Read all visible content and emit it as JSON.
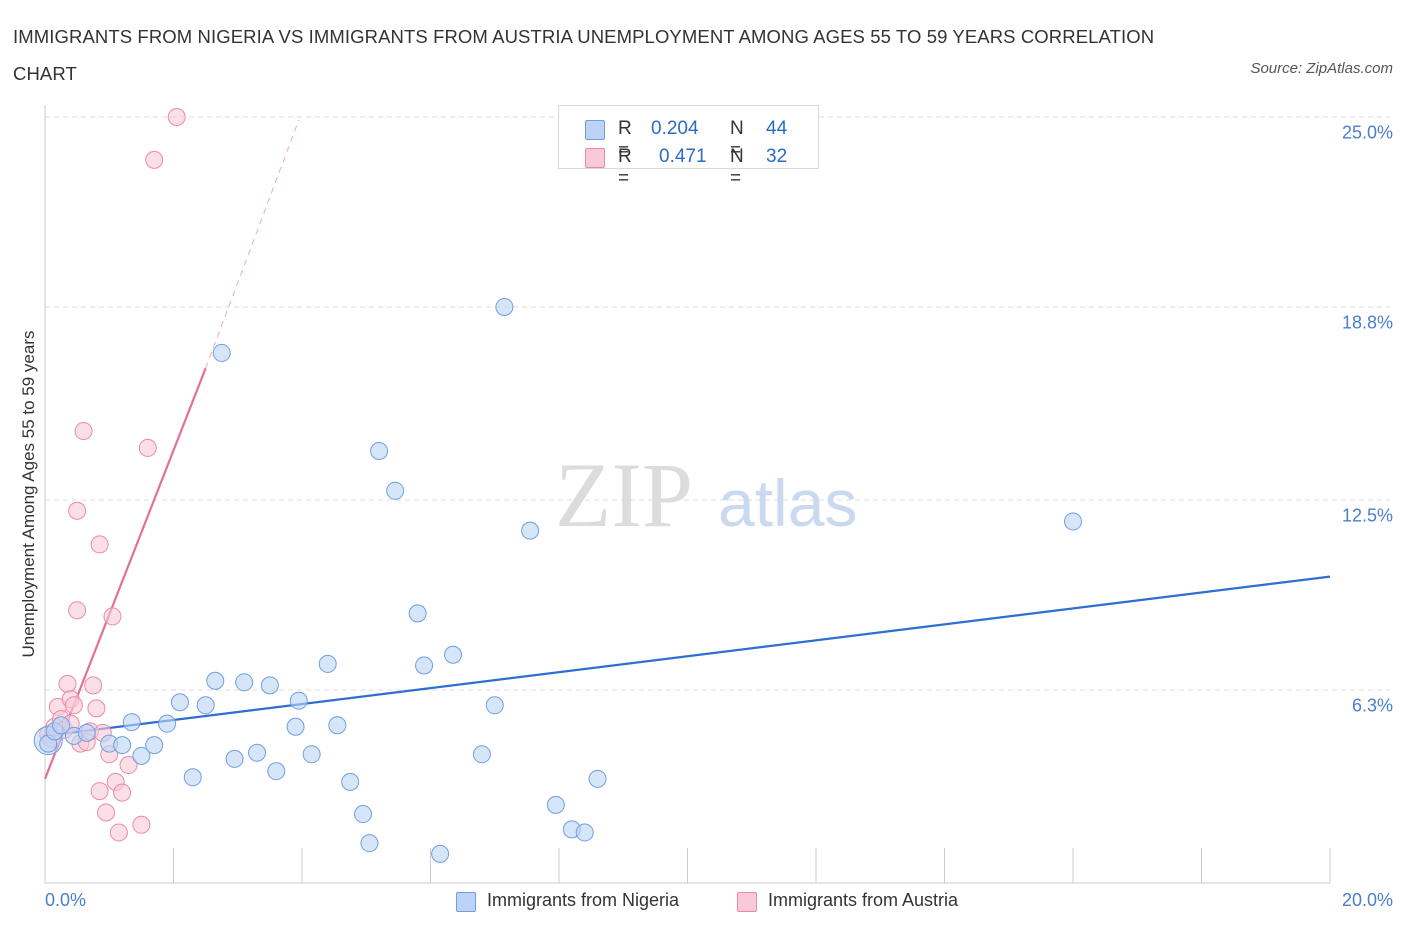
{
  "chart_data": {
    "type": "scatter",
    "title": "IMMIGRANTS FROM NIGERIA VS IMMIGRANTS FROM AUSTRIA UNEMPLOYMENT AMONG AGES 55 TO 59 YEARS CORRELATION CHART",
    "source": "Source: ZipAtlas.com",
    "xlabel": "",
    "ylabel": "Unemployment Among Ages 55 to 59 years",
    "xlim": [
      0,
      20
    ],
    "ylim": [
      0,
      25
    ],
    "x_tick_labels": [
      {
        "value": 0,
        "label": "0.0%"
      },
      {
        "value": 20,
        "label": "20.0%"
      }
    ],
    "y_tick_labels": [
      {
        "value": 6.3,
        "label": "6.3%"
      },
      {
        "value": 12.5,
        "label": "12.5%"
      },
      {
        "value": 18.8,
        "label": "18.8%"
      },
      {
        "value": 25.0,
        "label": "25.0%"
      }
    ],
    "stats": [
      {
        "r_label": "R =",
        "r_value": "0.204",
        "n_label": "N =",
        "n_value": "44"
      },
      {
        "r_label": "R =",
        "r_value": "0.471",
        "n_label": "N =",
        "n_value": "32"
      }
    ],
    "series": [
      {
        "name": "Immigrants from Nigeria",
        "color": "#6f9fe0",
        "fill": "#bcd3f5",
        "trend_color": "#2d6fd0",
        "trend": {
          "x0": 0,
          "y0": 4.8,
          "x1": 20,
          "y1": 10.0
        },
        "points": [
          [
            0.05,
            4.55
          ],
          [
            0.15,
            4.95
          ],
          [
            0.25,
            5.15
          ],
          [
            0.45,
            4.8
          ],
          [
            0.65,
            4.9
          ],
          [
            1.0,
            4.55
          ],
          [
            1.2,
            4.5
          ],
          [
            1.35,
            5.25
          ],
          [
            1.5,
            4.15
          ],
          [
            1.7,
            4.5
          ],
          [
            1.9,
            5.2
          ],
          [
            2.1,
            5.9
          ],
          [
            2.3,
            3.45
          ],
          [
            2.5,
            5.8
          ],
          [
            2.65,
            6.6
          ],
          [
            2.95,
            4.05
          ],
          [
            3.1,
            6.55
          ],
          [
            3.3,
            4.25
          ],
          [
            3.5,
            6.45
          ],
          [
            3.6,
            3.65
          ],
          [
            3.9,
            5.1
          ],
          [
            3.95,
            5.95
          ],
          [
            4.15,
            4.2
          ],
          [
            4.4,
            7.15
          ],
          [
            4.55,
            5.15
          ],
          [
            4.75,
            3.3
          ],
          [
            4.95,
            2.25
          ],
          [
            5.05,
            1.3
          ],
          [
            5.2,
            14.1
          ],
          [
            5.45,
            12.8
          ],
          [
            5.8,
            8.8
          ],
          [
            5.9,
            7.1
          ],
          [
            6.15,
            0.95
          ],
          [
            6.35,
            7.45
          ],
          [
            6.8,
            4.2
          ],
          [
            7.0,
            5.8
          ],
          [
            7.15,
            18.8
          ],
          [
            7.55,
            11.5
          ],
          [
            7.95,
            2.55
          ],
          [
            8.2,
            1.75
          ],
          [
            8.4,
            1.65
          ],
          [
            8.6,
            3.4
          ],
          [
            2.75,
            17.3
          ],
          [
            16.0,
            11.8
          ]
        ]
      },
      {
        "name": "Immigrants from Austria",
        "color": "#ec8aa8",
        "fill": "#f8c9d7",
        "trend_color": "#e0719a",
        "trend": {
          "x0": 0,
          "y0": 3.4,
          "x1": 2.5,
          "y1": 16.8
        },
        "trend_ext": {
          "x0": 2.5,
          "y0": 16.8,
          "x1": 3.95,
          "y1": 24.9
        },
        "points": [
          [
            0.05,
            4.85
          ],
          [
            0.1,
            4.7
          ],
          [
            0.15,
            5.1
          ],
          [
            0.2,
            5.75
          ],
          [
            0.25,
            5.35
          ],
          [
            0.3,
            5.0
          ],
          [
            0.35,
            6.5
          ],
          [
            0.4,
            6.0
          ],
          [
            0.45,
            5.8
          ],
          [
            0.5,
            12.15
          ],
          [
            0.5,
            8.9
          ],
          [
            0.55,
            4.55
          ],
          [
            0.6,
            14.75
          ],
          [
            0.65,
            4.6
          ],
          [
            0.7,
            4.95
          ],
          [
            0.75,
            6.45
          ],
          [
            0.8,
            5.7
          ],
          [
            0.85,
            11.05
          ],
          [
            0.9,
            4.9
          ],
          [
            0.95,
            2.3
          ],
          [
            1.0,
            4.2
          ],
          [
            1.05,
            8.7
          ],
          [
            1.1,
            3.3
          ],
          [
            1.15,
            1.65
          ],
          [
            1.2,
            2.95
          ],
          [
            1.3,
            3.85
          ],
          [
            1.5,
            1.9
          ],
          [
            1.6,
            14.2
          ],
          [
            1.7,
            23.6
          ],
          [
            2.05,
            25.0
          ],
          [
            0.85,
            3.0
          ],
          [
            0.4,
            5.2
          ]
        ]
      }
    ],
    "legend_position": "bottom-center",
    "watermark": "ZIPatlas"
  }
}
